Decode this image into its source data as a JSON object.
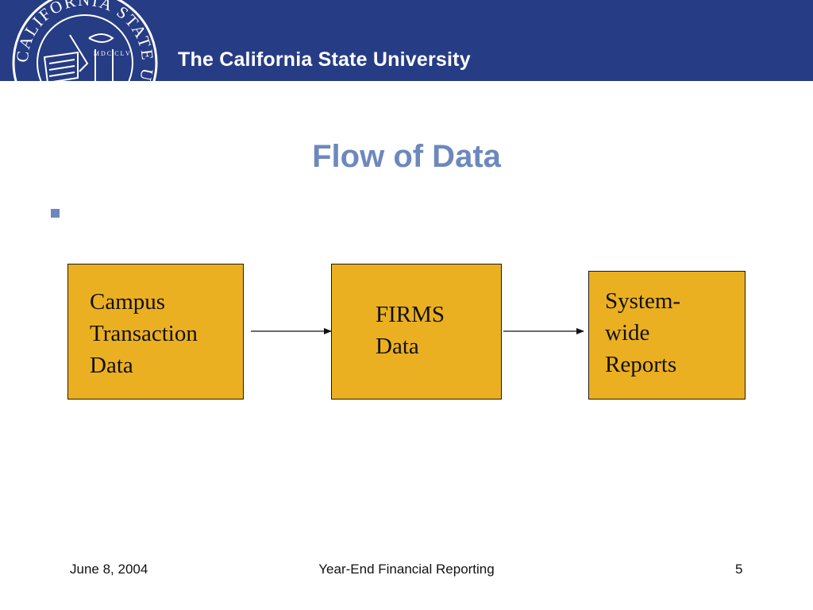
{
  "header": {
    "org_name": "The California State University",
    "seal": {
      "ring_text": "CALIFORNIA STATE UNIVERSITY",
      "year_left": "M D C",
      "year_right": "C L V"
    },
    "colors": {
      "bar": "#263c84",
      "text": "#ffffff"
    }
  },
  "slide": {
    "title": "Flow of Data",
    "bullet_text": "",
    "title_color": "#6d88bd"
  },
  "diagram": {
    "box_color": "#ebb022",
    "nodes": [
      {
        "id": "campus",
        "label": "Campus\nTransaction\nData"
      },
      {
        "id": "firms",
        "label": "FIRMS\nData"
      },
      {
        "id": "reports",
        "label": "System-\nwide\nReports"
      }
    ],
    "edges": [
      {
        "from": "campus",
        "to": "firms"
      },
      {
        "from": "firms",
        "to": "reports"
      }
    ]
  },
  "footer": {
    "date": "June 8, 2004",
    "center": "Year-End Financial Reporting",
    "page": "5"
  }
}
